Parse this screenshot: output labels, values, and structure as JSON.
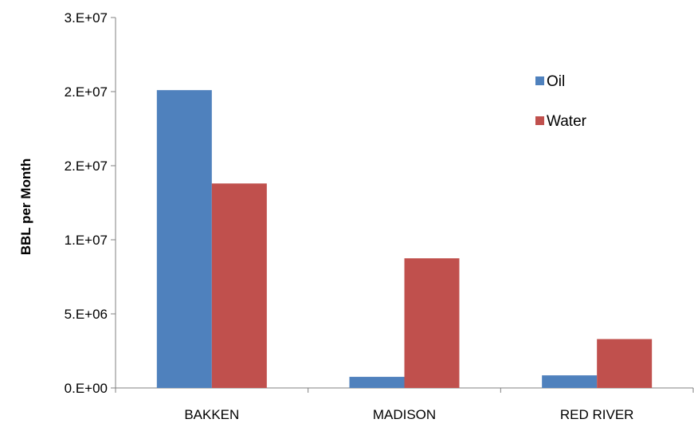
{
  "chart_data": {
    "type": "bar",
    "categories": [
      "BAKKEN",
      "MADISON",
      "RED RIVER"
    ],
    "series": [
      {
        "name": "Oil",
        "color": "#4f81bd",
        "values": [
          20100000,
          750000,
          850000
        ]
      },
      {
        "name": "Water",
        "color": "#c0504d",
        "values": [
          13800000,
          8750000,
          3300000
        ]
      }
    ],
    "ylabel": "BBL per Month",
    "xlabel": "",
    "ylim": [
      0,
      25000000
    ],
    "y_ticks": [
      0,
      5000000,
      10000000,
      15000000,
      20000000,
      25000000
    ],
    "y_tick_labels": [
      "0.E+00",
      "5.E+06",
      "1.E+07",
      "2.E+07",
      "2.E+07",
      "3.E+07"
    ],
    "grid": false,
    "legend_position": "top-right"
  }
}
